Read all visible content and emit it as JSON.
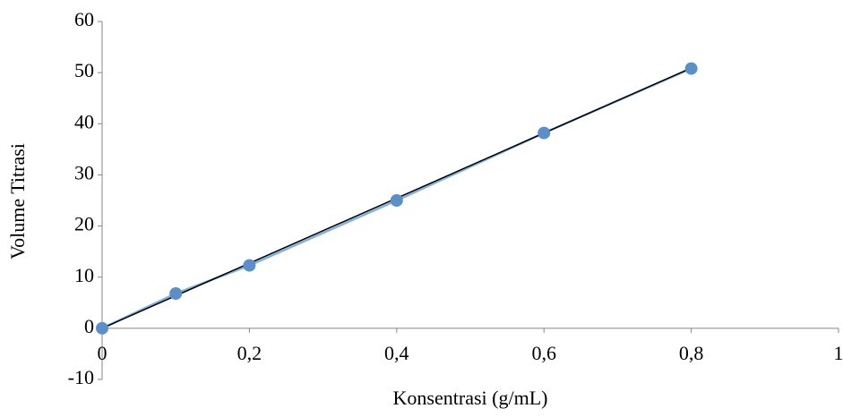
{
  "chart_data": {
    "type": "scatter",
    "x_label": "Konsentrasi (g/mL)",
    "y_label": "Volume Titrasi",
    "x": [
      0,
      0.1,
      0.2,
      0.4,
      0.6,
      0.8
    ],
    "values": [
      0,
      6.8,
      12.3,
      25,
      38.2,
      50.8
    ],
    "color": "#5b8fc9",
    "line_color": "#7fb2e0",
    "trendline": {
      "x": [
        0,
        0.8
      ],
      "values": [
        0,
        50.9
      ],
      "color": "#000000"
    },
    "xlim": [
      0,
      1
    ],
    "ylim": [
      -10,
      60
    ],
    "xticks": [
      0,
      {
        "value": 0.2,
        "label": "0,2"
      },
      {
        "value": 0.4,
        "label": "0,4"
      },
      {
        "value": 0.6,
        "label": "0,6"
      },
      {
        "value": 0.8,
        "label": "0,8"
      },
      1
    ],
    "yticks": [
      -10,
      0,
      10,
      20,
      30,
      40,
      50,
      60
    ],
    "grid": false
  }
}
